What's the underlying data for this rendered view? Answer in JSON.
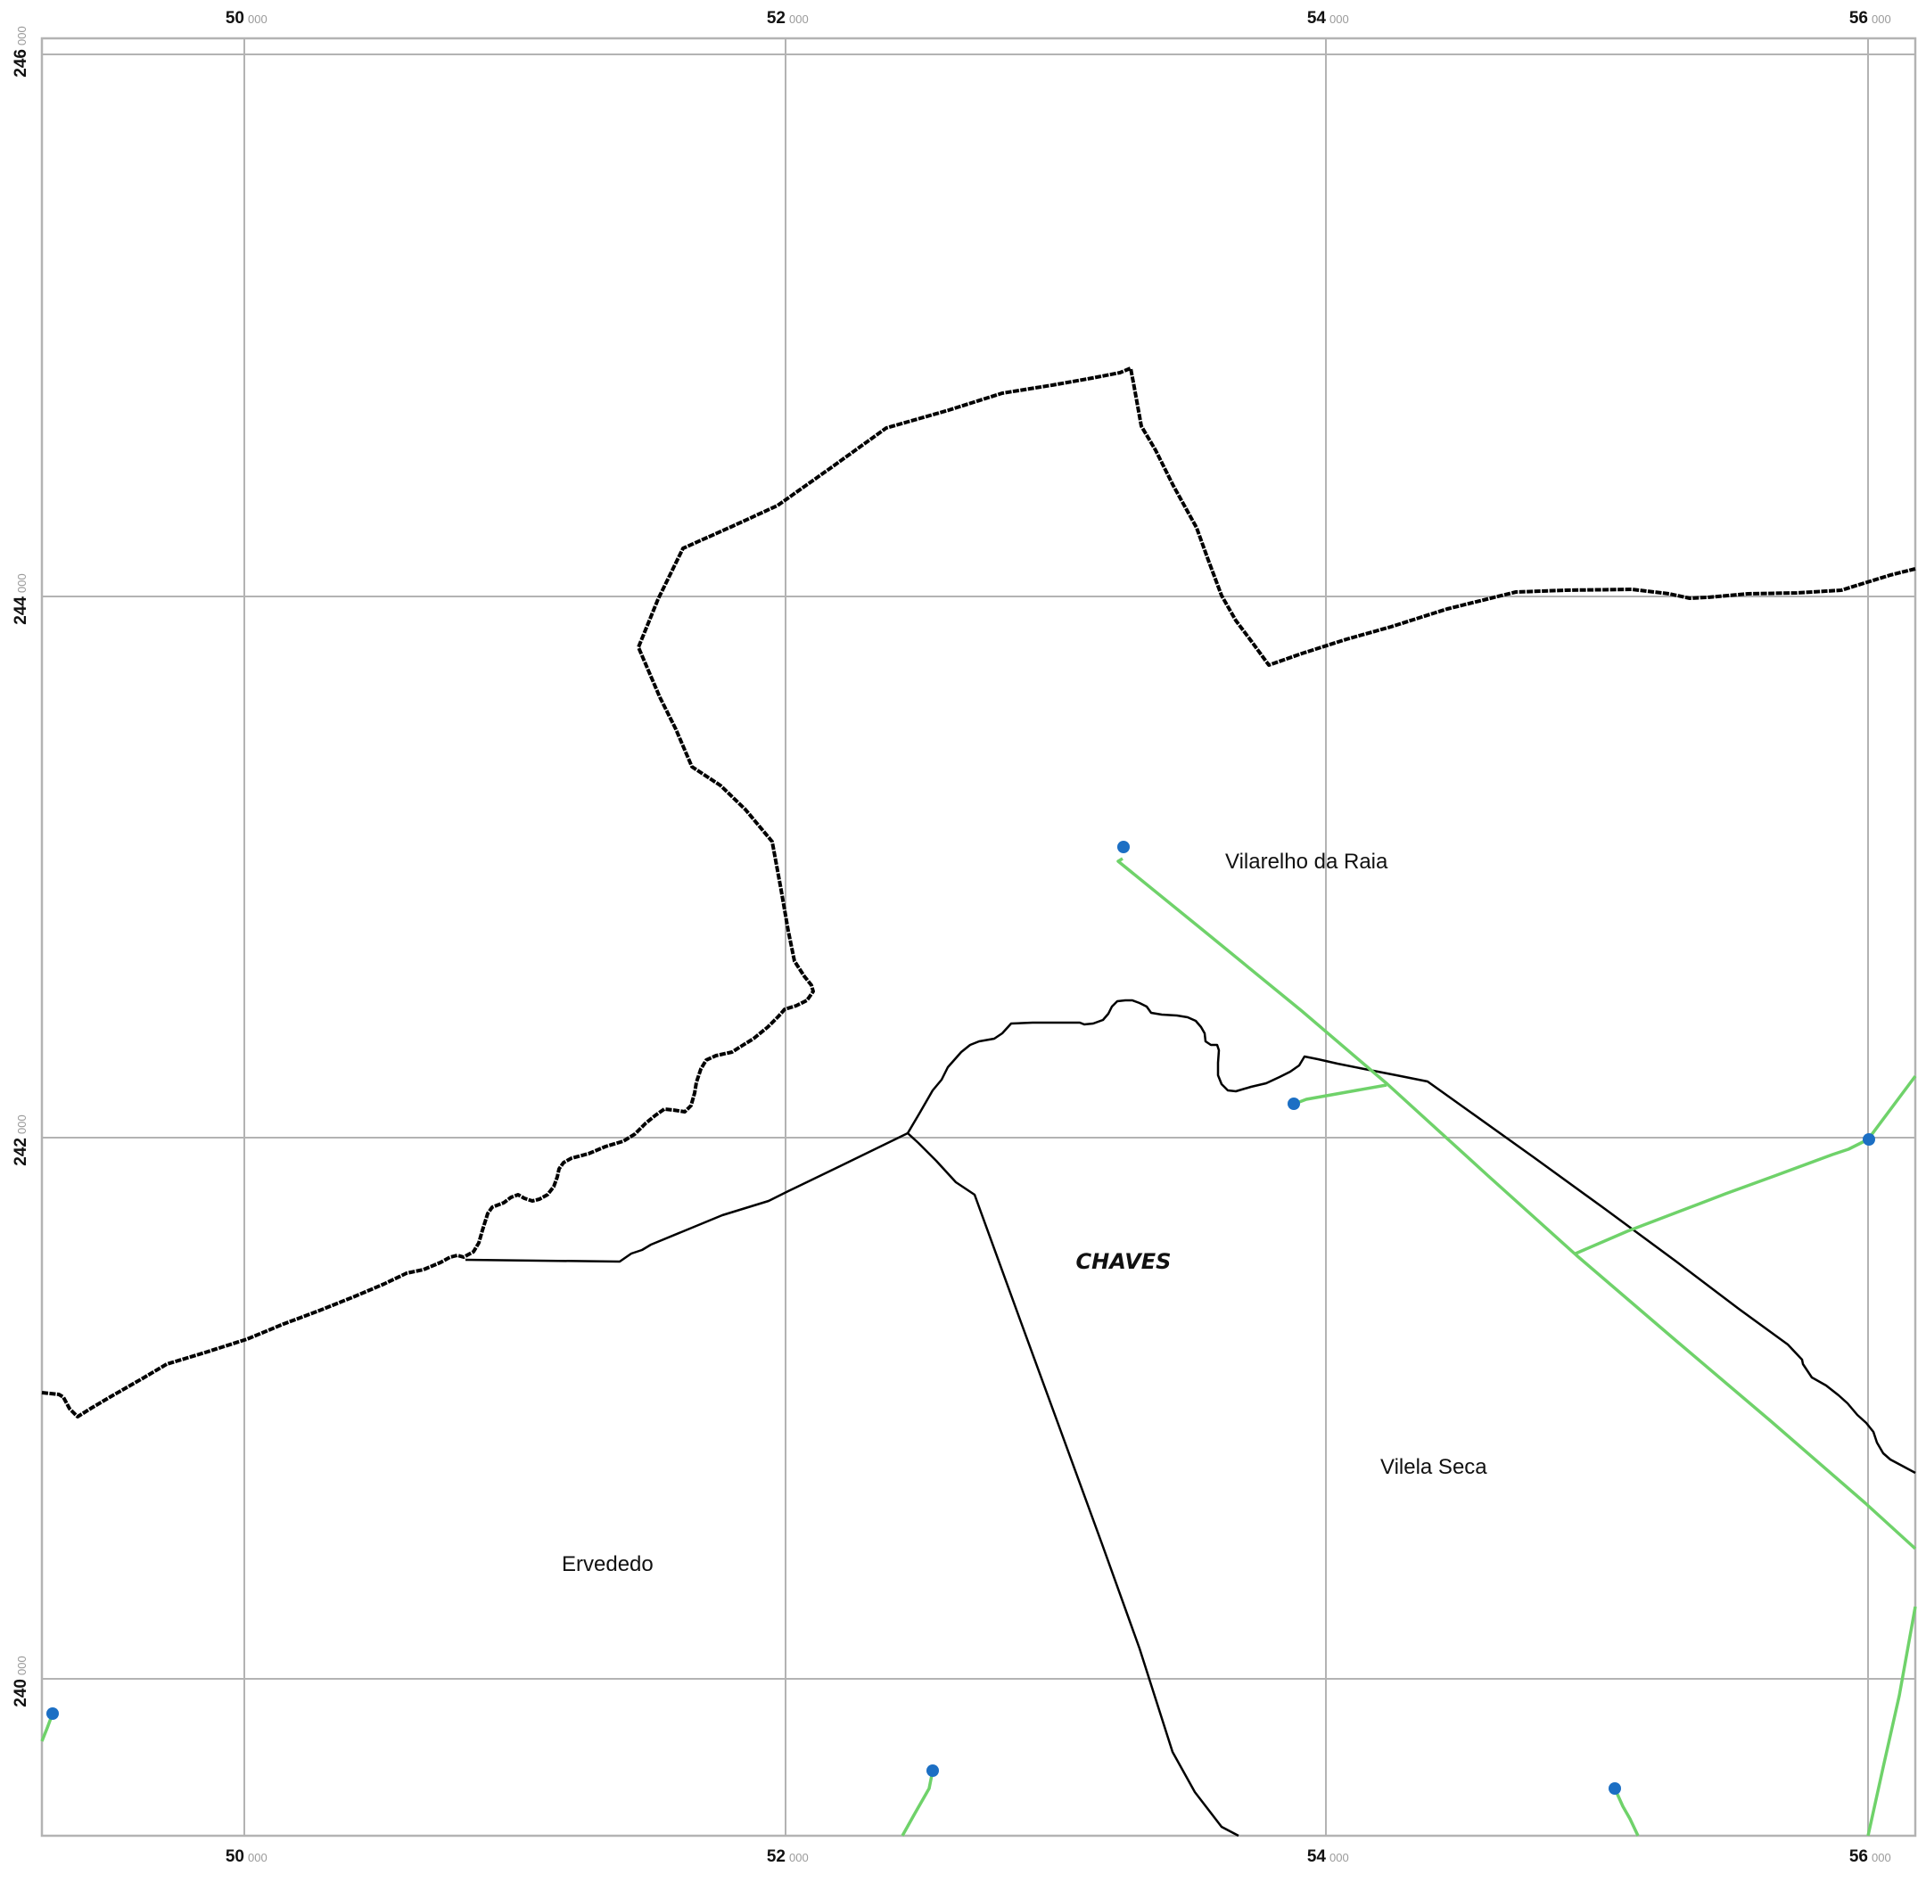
{
  "map": {
    "grid": {
      "x_ticks": [
        {
          "major": "50",
          "minor": "000"
        },
        {
          "major": "52",
          "minor": "000"
        },
        {
          "major": "54",
          "minor": "000"
        },
        {
          "major": "56",
          "minor": "000"
        }
      ],
      "y_ticks": [
        {
          "major": "246",
          "minor": "000"
        },
        {
          "major": "244",
          "minor": "000"
        },
        {
          "major": "242",
          "minor": "000"
        },
        {
          "major": "240",
          "minor": "000"
        }
      ]
    },
    "labels": {
      "vilarelho": "Vilarelho da Raia",
      "chaves": "CHAVES",
      "vilela_seca": "Vilela Seca",
      "ervededo": "Ervededo"
    },
    "colors": {
      "grid": "#b3b3b3",
      "boundary": "#000000",
      "route": "#6fd26a",
      "point": "#1c6fc4"
    }
  }
}
